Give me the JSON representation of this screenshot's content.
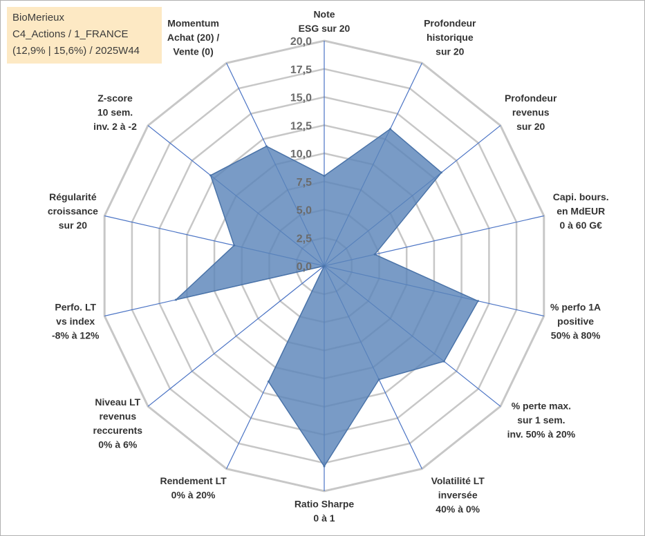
{
  "info": {
    "company": "BioMerieux",
    "portfolio": "C4_Actions / 1_FRANCE",
    "stats": "(12,9% | 15,6%) / 2025W44"
  },
  "chart_data": {
    "type": "radar",
    "title": "",
    "rmax": 20,
    "ticks": [
      "0,0",
      "2,5",
      "5,0",
      "7,5",
      "10,0",
      "12,5",
      "15,0",
      "17,5",
      "20,0"
    ],
    "tick_values": [
      0,
      2.5,
      5,
      7.5,
      10,
      12.5,
      15,
      17.5,
      20
    ],
    "grid_steps": [
      2.5,
      5,
      7.5,
      10,
      12.5,
      15,
      17.5,
      20
    ],
    "categories": [
      [
        "Note",
        "ESG sur 20"
      ],
      [
        "Profondeur",
        "historique",
        "sur 20"
      ],
      [
        "Profondeur",
        "revenus",
        "sur 20"
      ],
      [
        "Capi. bours.",
        "en MdEUR",
        "0 à 60 G€"
      ],
      [
        "% perfo 1A",
        "positive",
        "50% à 80%"
      ],
      [
        "% perte max.",
        "sur 1 sem.",
        "inv. 50% à 20%"
      ],
      [
        "Volatilité LT",
        "inversée",
        "40% à 0%"
      ],
      [
        "Ratio Sharpe",
        "0 à 1"
      ],
      [
        "Rendement LT",
        "0% à 20%"
      ],
      [
        "Niveau LT",
        "revenus",
        "reccurents",
        "0% à 6%"
      ],
      [
        "Perfo. LT",
        "vs index",
        "-8% à 12%"
      ],
      [
        "Régularité",
        "croissance",
        "sur 20"
      ],
      [
        "Z-score",
        "10 sem.",
        "inv. 2 à -2"
      ],
      [
        "Momentum",
        "Achat (20) /",
        "Vente (0)"
      ]
    ],
    "series": [
      {
        "name": "BioMerieux",
        "values": [
          8,
          13.5,
          13.3,
          4.6,
          14,
          13.6,
          11.2,
          17.8,
          11.4,
          0,
          13.5,
          8.2,
          12.9,
          11.8
        ]
      }
    ],
    "colors": {
      "fill": "#5b85b9",
      "outline": "#4a73a8",
      "spoke": "#4a73c4",
      "grid": "#c7c7c7"
    }
  }
}
